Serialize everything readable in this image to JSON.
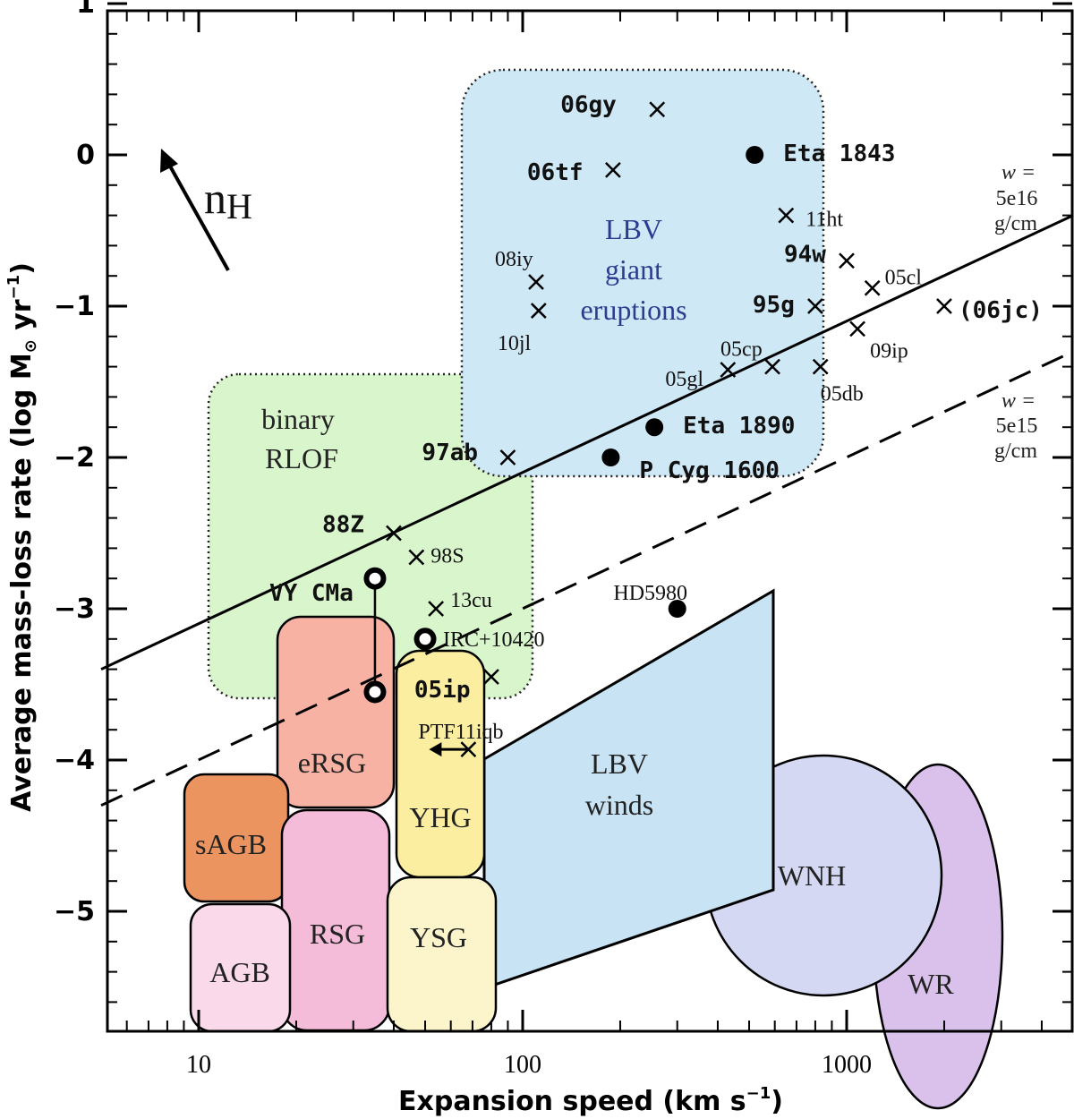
{
  "chart_data": {
    "type": "scatter",
    "xlabel": "Expansion speed (km s",
    "xlabel_sup": "−1",
    "xlabel_end": ")",
    "ylabel": "Average mass-loss rate (log M",
    "ylabel_sun": "⊙",
    "ylabel_mid": " yr",
    "ylabel_sup": "−1",
    "ylabel_end": ")",
    "x_scale": "log",
    "xlim": [
      5,
      5000
    ],
    "ylim": [
      -5.75,
      1.0
    ],
    "x_ticks": [
      {
        "value": 10,
        "label": "10"
      },
      {
        "value": 100,
        "label": "100"
      },
      {
        "value": 1000,
        "label": "1000"
      }
    ],
    "y_ticks": [
      {
        "value": 1,
        "label": "1"
      },
      {
        "value": 0,
        "label": "0"
      },
      {
        "value": -1,
        "label": "−1"
      },
      {
        "value": -2,
        "label": "−2"
      },
      {
        "value": -3,
        "label": "−3"
      },
      {
        "value": -4,
        "label": "−4"
      },
      {
        "value": -5,
        "label": "−5"
      }
    ],
    "grid": false,
    "legend": "none",
    "arrow_label": "n",
    "arrow_label_sub": "H",
    "lines": [
      {
        "style": "solid",
        "points": [
          [
            5,
            -3.4
          ],
          [
            5000,
            -0.4
          ]
        ],
        "label_w": "w =",
        "label_val": "5e16",
        "label_unit": "g/cm"
      },
      {
        "style": "dashed",
        "points": [
          [
            5,
            -4.3
          ],
          [
            5000,
            -1.3
          ]
        ],
        "label_w": "w =",
        "label_val": "5e15",
        "label_unit": "g/cm"
      }
    ],
    "regions": [
      {
        "label": "binary",
        "label2": "RLOF",
        "color": "#d9f5cc"
      },
      {
        "label": "LBV",
        "label2": "giant",
        "label3": "eruptions",
        "color": "#cfe8f5"
      },
      {
        "label": "eRSG",
        "color": "#f7b2a4"
      },
      {
        "label": "YHG",
        "color": "#fbeea0"
      },
      {
        "label": "sAGB",
        "color": "#ec9460"
      },
      {
        "label": "RSG",
        "color": "#f4bcd8"
      },
      {
        "label": "YSG",
        "color": "#fcf5cc"
      },
      {
        "label": "AGB",
        "color": "#fad9ea"
      },
      {
        "label": "LBV",
        "label2": "winds",
        "color": "#c8e3f3"
      },
      {
        "label": "WNH",
        "color": "#d4d8f2"
      },
      {
        "label": "WR",
        "color": "#d9c1ec"
      }
    ],
    "points_filled": [
      {
        "name": "Eta 1843",
        "x": 520,
        "y": 0.0,
        "bold": true
      },
      {
        "name": "Eta 1890",
        "x": 255,
        "y": -1.8,
        "bold": true
      },
      {
        "name": "P Cyg 1600",
        "x": 187,
        "y": -2.0,
        "bold": true
      },
      {
        "name": "HD5980",
        "x": 300,
        "y": -3.0,
        "bold": false
      }
    ],
    "points_ring": [
      {
        "name": "VY CMa",
        "x": 35,
        "y": -2.8
      },
      {
        "name": "",
        "x": 35,
        "y": -3.55
      },
      {
        "name": "IRC+10420",
        "x": 50,
        "y": -3.2
      }
    ],
    "points_cross": [
      {
        "name": "06gy",
        "x": 260,
        "y": 0.3,
        "bold": true
      },
      {
        "name": "06tf",
        "x": 190,
        "y": -0.1,
        "bold": true
      },
      {
        "name": "11ht",
        "x": 650,
        "y": -0.4,
        "bold": false
      },
      {
        "name": "94w",
        "x": 1000,
        "y": -0.7,
        "bold": true
      },
      {
        "name": "05cl",
        "x": 1200,
        "y": -0.88,
        "bold": false
      },
      {
        "name": "95g",
        "x": 800,
        "y": -1.0,
        "bold": true
      },
      {
        "name": "(06jc)",
        "x": 2000,
        "y": -1.0,
        "bold": true
      },
      {
        "name": "09ip",
        "x": 1080,
        "y": -1.15,
        "bold": false
      },
      {
        "name": "08iy",
        "x": 110,
        "y": -0.84,
        "bold": false
      },
      {
        "name": "10jl",
        "x": 112,
        "y": -1.03,
        "bold": false
      },
      {
        "name": "05cp",
        "x": 590,
        "y": -1.4,
        "bold": false
      },
      {
        "name": "05gl",
        "x": 430,
        "y": -1.42,
        "bold": false
      },
      {
        "name": "05db",
        "x": 830,
        "y": -1.4,
        "bold": false
      },
      {
        "name": "97ab",
        "x": 90,
        "y": -2.0,
        "bold": true
      },
      {
        "name": "88Z",
        "x": 40,
        "y": -2.5,
        "bold": true
      },
      {
        "name": "98S",
        "x": 47,
        "y": -2.66,
        "bold": false
      },
      {
        "name": "13cu",
        "x": 54,
        "y": -3.0,
        "bold": false
      },
      {
        "name": "05ip",
        "x": 80,
        "y": -3.45,
        "bold": true
      },
      {
        "name": "PTF11iqb",
        "x": 68,
        "y": -3.93,
        "bold": false
      }
    ]
  }
}
